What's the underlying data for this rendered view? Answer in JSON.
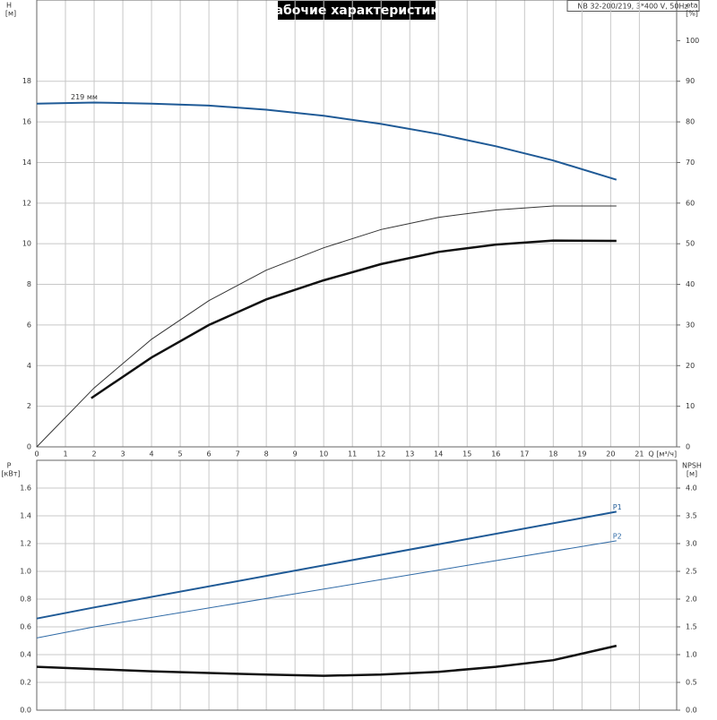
{
  "chart_data": [
    {
      "type": "line",
      "title": "Рабочие характеристики",
      "subtitle": "NB 32-200/219, 3*400 V, 50Hz",
      "y_label": "H",
      "y_unit": "[м]",
      "y2_label": "eta",
      "y2_unit": "[%]",
      "x_label": "Q [м³/ч]",
      "xlim": [
        0,
        22.3
      ],
      "xticks": [
        0,
        1,
        2,
        3,
        4,
        5,
        6,
        7,
        8,
        9,
        10,
        11,
        12,
        13,
        14,
        15,
        16,
        17,
        18,
        19,
        20,
        21
      ],
      "ylim": [
        0,
        22
      ],
      "yticks": [
        0,
        2,
        4,
        6,
        8,
        10,
        12,
        14,
        16,
        18
      ],
      "y2lim": [
        0,
        110
      ],
      "y2ticks": [
        0,
        10,
        20,
        30,
        40,
        50,
        60,
        70,
        80,
        90,
        100
      ],
      "grid": true,
      "series": [
        {
          "name": "219 мм",
          "color": "#1f5a96",
          "line_width": 2,
          "x": [
            0,
            2,
            4,
            6,
            8,
            10,
            12,
            14,
            16,
            18,
            20.2
          ],
          "values": [
            16.9,
            16.95,
            16.9,
            16.8,
            16.6,
            16.3,
            15.9,
            15.4,
            14.8,
            14.1,
            13.15
          ]
        },
        {
          "color": "#333333",
          "line_width": 1,
          "axis": "y2",
          "x": [
            0,
            2,
            4,
            6,
            8,
            10,
            12,
            14,
            16,
            18,
            20.2
          ],
          "values": [
            0,
            14.5,
            26.5,
            36,
            43.5,
            49,
            53.5,
            56.5,
            58.3,
            59.3,
            59.3
          ]
        },
        {
          "color": "#111111",
          "line_width": 2.5,
          "axis": "y2",
          "x": [
            1.9,
            4,
            6,
            8,
            10,
            12,
            14,
            16,
            18,
            20.2
          ],
          "values": [
            12,
            22,
            30,
            36.3,
            41,
            45,
            48,
            49.8,
            50.8,
            50.7
          ]
        }
      ]
    },
    {
      "type": "line",
      "y_label": "P",
      "y_unit": "[кВт]",
      "y2_label": "NPSH",
      "y2_unit": "[м]",
      "xlim": [
        0,
        22.3
      ],
      "ylim": [
        0,
        1.8
      ],
      "yticks": [
        {
          "value": 0,
          "label": "0.0"
        },
        0.2,
        0.4,
        0.6,
        0.8,
        {
          "value": 1,
          "label": "1.0"
        },
        1.2,
        1.4,
        1.6
      ],
      "y2lim": [
        0,
        4.5
      ],
      "y2ticks": [
        {
          "value": 0,
          "label": "0.0"
        },
        0.5,
        {
          "value": 1,
          "label": "1.0"
        },
        1.5,
        {
          "value": 2,
          "label": "2.0"
        },
        2.5,
        {
          "value": 3,
          "label": "3.0"
        },
        3.5,
        {
          "value": 4,
          "label": "4.0"
        }
      ],
      "grid": true,
      "series": [
        {
          "name": "P1",
          "color": "#1f5a96",
          "line_width": 2,
          "x": [
            0,
            2,
            20.2
          ],
          "values": [
            0.66,
            0.74,
            1.43
          ]
        },
        {
          "name": "P2",
          "color": "#2f6aa6",
          "line_width": 1,
          "x": [
            0,
            2,
            20.2
          ],
          "values": [
            0.52,
            0.6,
            1.22
          ]
        },
        {
          "color": "#111111",
          "line_width": 2.5,
          "axis": "y2",
          "x": [
            0,
            2,
            4,
            6,
            8,
            10,
            12,
            14,
            16,
            18,
            20.2
          ],
          "values": [
            0.78,
            0.74,
            0.7,
            0.67,
            0.64,
            0.62,
            0.64,
            0.69,
            0.78,
            0.9,
            1.16
          ]
        }
      ]
    }
  ]
}
